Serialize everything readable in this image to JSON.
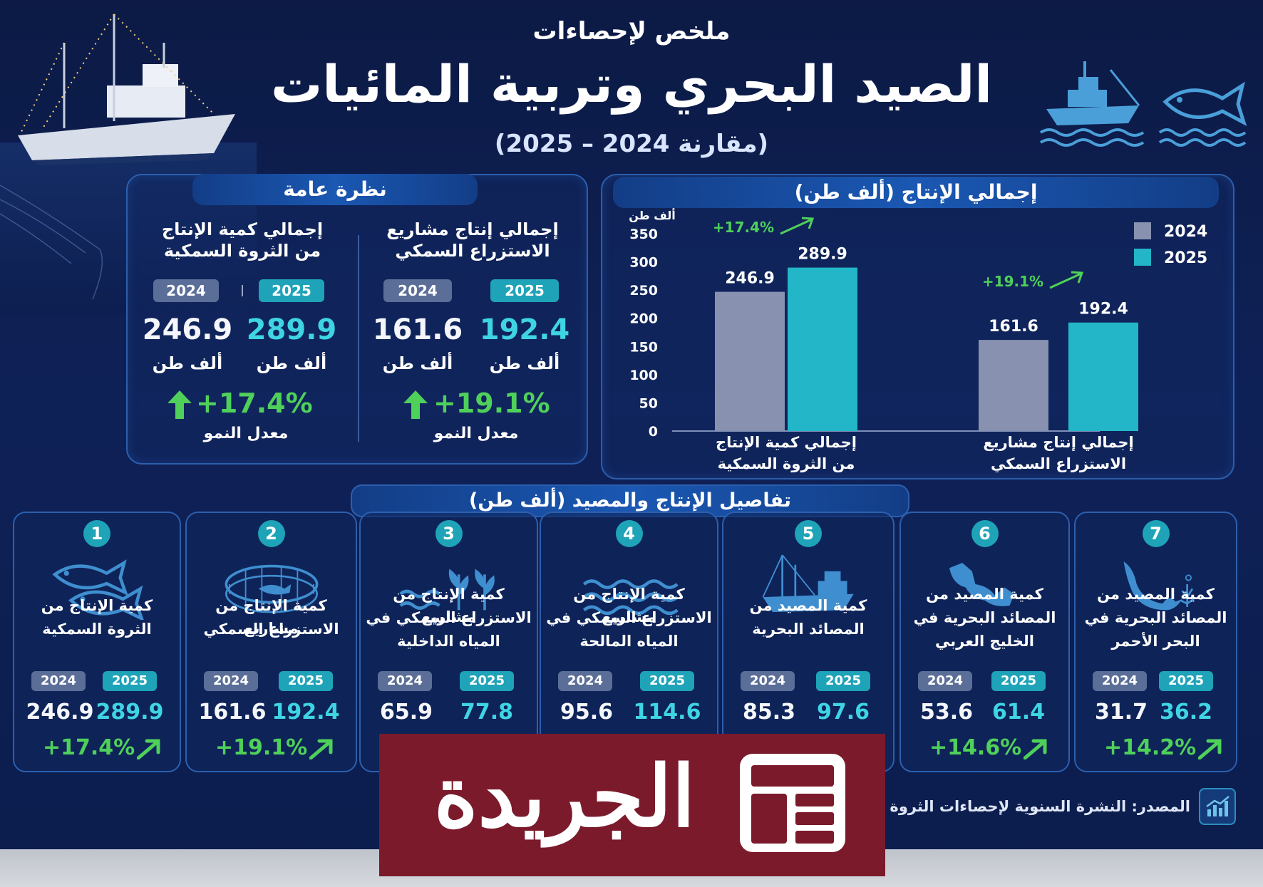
{
  "header": {
    "subtitle": "ملخص لإحصاءات",
    "title": "الصيد البحري وتربية المائيات",
    "years": "(مقارنة 2024 – 2025)"
  },
  "overview": {
    "title": "نظرة عامة",
    "blocks": [
      {
        "title_line1": "إجمالي كمية الإنتاج",
        "title_line2": "من الثروة السمكية",
        "label_2024": "2024",
        "label_2025": "2025",
        "value_2024": "246.9",
        "value_2025": "289.9",
        "unit": "ألف طن",
        "growth": "+17.4%",
        "growth_label": "معدل النمو"
      },
      {
        "title_line1": "إجمالي إنتاج مشاريع",
        "title_line2": "الاستزراع السمكي",
        "label_2024": "2024",
        "label_2025": "2025",
        "value_2024": "161.6",
        "value_2025": "192.4",
        "unit": "ألف طن",
        "growth": "+19.1%",
        "growth_label": "معدل النمو"
      }
    ]
  },
  "chart_panel": {
    "title": "إجمالي الإنتاج (ألف طن)"
  },
  "chart_data": {
    "type": "bar",
    "ylabel": "ألف طن",
    "ylim": [
      0,
      350
    ],
    "yticks": [
      0,
      50,
      100,
      150,
      200,
      250,
      300,
      350
    ],
    "categories": [
      [
        "إجمالي كمية الإنتاج",
        "من الثروة السمكية"
      ],
      [
        "إجمالي إنتاج مشاريع",
        "الاستزراع السمكي"
      ]
    ],
    "series": [
      {
        "name": "2024",
        "values": [
          246.9,
          161.6
        ],
        "color": "#8892b0"
      },
      {
        "name": "2025",
        "values": [
          289.9,
          192.4
        ],
        "color": "#22b6c8"
      }
    ],
    "growth_labels": [
      "+17.4%",
      "+19.1%"
    ],
    "legend_position": "top-right",
    "grid": false
  },
  "details": {
    "title": "تفاصيل الإنتاج والمصيد (ألف طن)",
    "cards": [
      {
        "num": "7",
        "icon": "red-sea-map-icon",
        "lines": [
          "كمية المصيد من",
          "المصائد البحرية في",
          "البحر الأحمر"
        ],
        "v2024": "31.7",
        "v2025": "36.2",
        "growth": "+14.2%"
      },
      {
        "num": "6",
        "icon": "arabian-gulf-map-icon",
        "lines": [
          "كمية المصيد من",
          "المصائد البحرية في",
          "الخليج العربي"
        ],
        "v2024": "53.6",
        "v2025": "61.4",
        "growth": "+14.6%"
      },
      {
        "num": "5",
        "icon": "fishing-boat-icon",
        "lines": [
          "كمية المصيد من",
          "المصائد البحرية"
        ],
        "v2024": "85.3",
        "v2025": "97.6",
        "growth": ""
      },
      {
        "num": "4",
        "icon": "sea-waves-icon",
        "lines": [
          "كمية الإنتاج من مشاريع",
          "الاستزراع السمكي في",
          "المياه المالحة"
        ],
        "v2024": "95.6",
        "v2025": "114.6",
        "growth": ""
      },
      {
        "num": "3",
        "icon": "waves-plants-icon",
        "lines": [
          "كمية الإنتاج من مشاريع",
          "الاستزراع السمكي في",
          "المياه الداخلية"
        ],
        "v2024": "65.9",
        "v2025": "77.8",
        "growth": ""
      },
      {
        "num": "2",
        "icon": "fish-cage-icon",
        "lines": [
          "كمية الإنتاج من مشاريع",
          "الاستزراع السمكي"
        ],
        "v2024": "161.6",
        "v2025": "192.4",
        "growth": "+19.1%"
      },
      {
        "num": "1",
        "icon": "two-fish-icon",
        "lines": [
          "كمية الإنتاج من",
          "الثروة السمكية"
        ],
        "v2024": "246.9",
        "v2025": "289.9",
        "growth": "+17.4%"
      }
    ],
    "label_2024": "2024",
    "label_2025": "2025"
  },
  "footer": {
    "source": "المصدر: النشرة السنوية لإحصاءات الثروة الس"
  },
  "watermark": {
    "text": "الجريدة",
    "icon": "newspaper-icon",
    "color": "#7b1a2b"
  }
}
